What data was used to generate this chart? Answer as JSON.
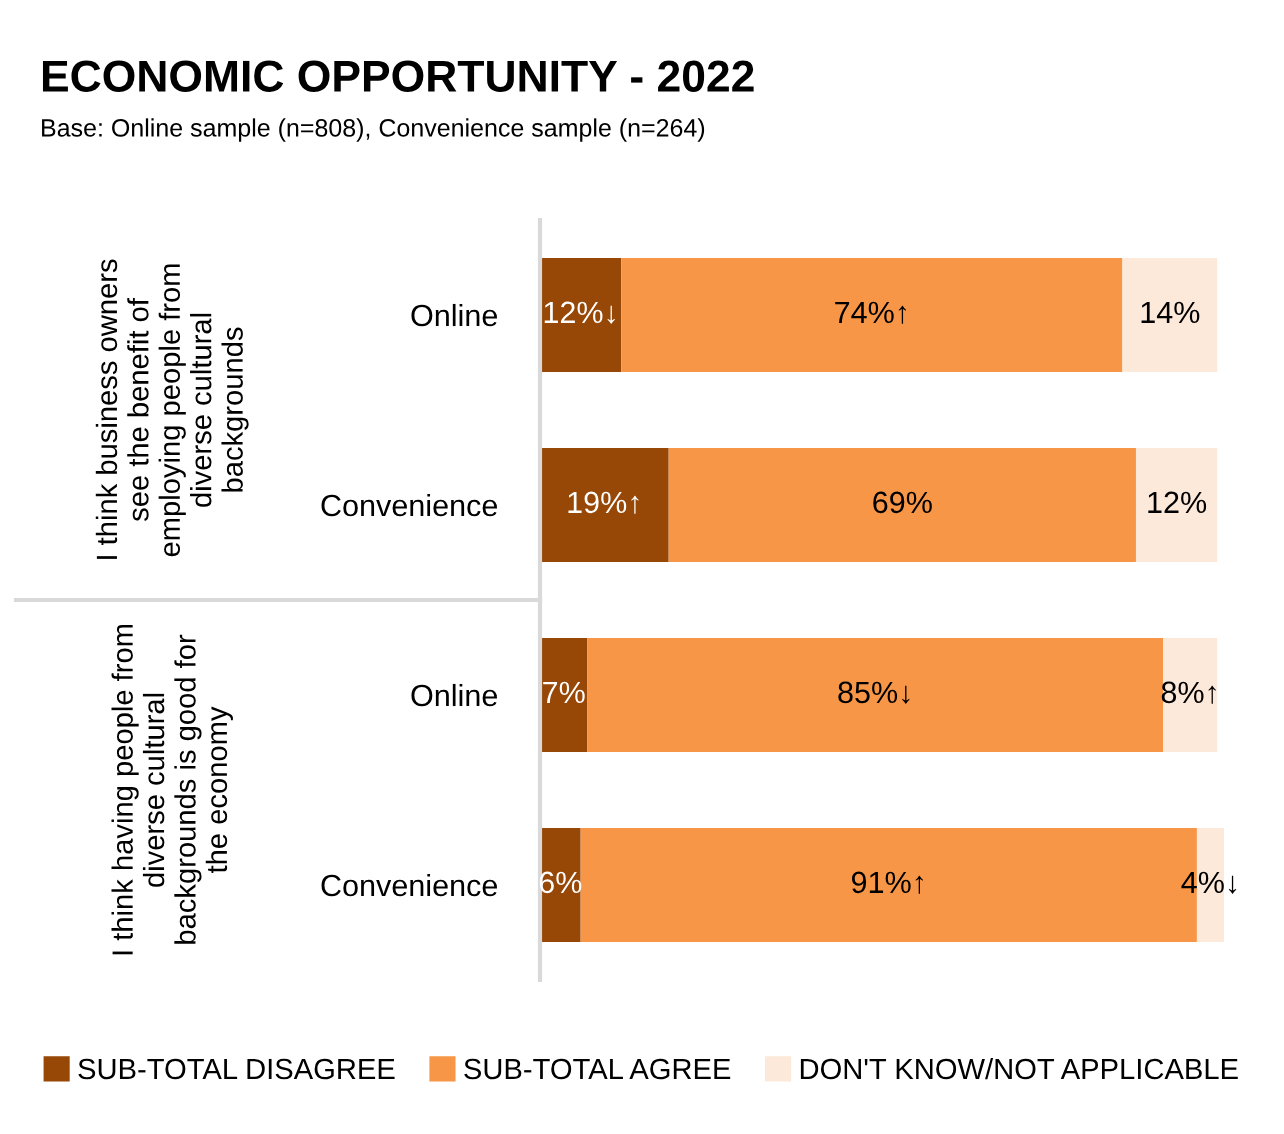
{
  "chart_data": {
    "type": "bar",
    "orientation": "horizontal",
    "stacked": true,
    "title": "ECONOMIC OPPORTUNITY - 2022",
    "subtitle": "Base: Online sample (n=808), Convenience sample (n=264)",
    "categories": [
      "Online",
      "Convenience",
      "Online",
      "Convenience"
    ],
    "series": [
      {
        "name": "SUB-TOTAL DISAGREE",
        "color": "#974706",
        "values": [
          12,
          19,
          7,
          6
        ],
        "value_labels": [
          "12%↓",
          "19%↑",
          "7%",
          "6%"
        ]
      },
      {
        "name": "SUB-TOTAL AGREE",
        "color": "#f79646",
        "values": [
          74,
          69,
          85,
          91
        ],
        "value_labels": [
          "74%↑",
          "69%",
          "85%↓",
          "91%↑"
        ]
      },
      {
        "name": "DON'T KNOW/NOT APPLICABLE",
        "color": "#fde9d9",
        "values": [
          14,
          12,
          8,
          4
        ],
        "value_labels": [
          "14%",
          "12%",
          "8%↑",
          "4%↓"
        ]
      }
    ],
    "annotations": [
      "I think business owners see the benefit of employing people from diverse cultural backgrounds",
      "I think having people from diverse cultural backgrounds is good for the economy"
    ],
    "legend": "bottom",
    "grid": false
  }
}
